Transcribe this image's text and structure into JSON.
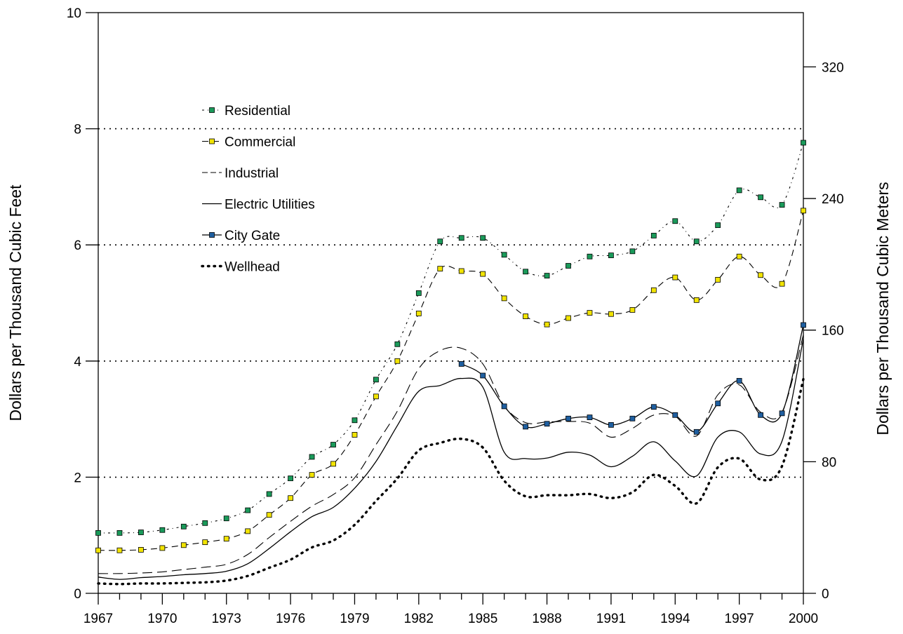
{
  "chart_data": {
    "type": "line",
    "ylabel": "Dollars per Thousand Cubic Feet",
    "y2label": "Dollars per Thousand Cubic Meters",
    "ylim": [
      0,
      10
    ],
    "y2lim": [
      0,
      353
    ],
    "xlim": [
      1967,
      2000
    ],
    "xticks": [
      "1967",
      "1970",
      "1973",
      "1976",
      "1979",
      "1982",
      "1985",
      "1988",
      "1991",
      "1994",
      "1997",
      "2000"
    ],
    "yticks": [
      "0",
      "2",
      "4",
      "6",
      "8",
      "10"
    ],
    "y2ticks": [
      "0",
      "80",
      "160",
      "240",
      "320"
    ],
    "grid": "horizontal dotted at 2, 4, 6, 8",
    "legend_position": "top-left",
    "x": [
      1967,
      1968,
      1969,
      1970,
      1971,
      1972,
      1973,
      1974,
      1975,
      1976,
      1977,
      1978,
      1979,
      1980,
      1981,
      1982,
      1983,
      1984,
      1985,
      1986,
      1987,
      1988,
      1989,
      1990,
      1991,
      1992,
      1993,
      1994,
      1995,
      1996,
      1997,
      1998,
      1999,
      2000
    ],
    "series": [
      {
        "name": "Residential",
        "style": "dashdot-markers",
        "color": "#1a9a5a",
        "values": [
          1.04,
          1.04,
          1.05,
          1.09,
          1.15,
          1.21,
          1.29,
          1.43,
          1.71,
          1.98,
          2.35,
          2.56,
          2.98,
          3.68,
          4.29,
          5.17,
          6.06,
          6.12,
          6.12,
          5.83,
          5.54,
          5.47,
          5.64,
          5.8,
          5.82,
          5.89,
          6.16,
          6.41,
          6.06,
          6.34,
          6.94,
          6.82,
          6.69,
          7.76
        ]
      },
      {
        "name": "Commercial",
        "style": "dashed-markers",
        "color": "#f2e400",
        "values": [
          0.74,
          0.74,
          0.75,
          0.78,
          0.83,
          0.88,
          0.94,
          1.07,
          1.35,
          1.64,
          2.04,
          2.23,
          2.73,
          3.39,
          4.0,
          4.82,
          5.59,
          5.55,
          5.5,
          5.08,
          4.77,
          4.63,
          4.74,
          4.83,
          4.81,
          4.88,
          5.22,
          5.44,
          5.05,
          5.4,
          5.8,
          5.48,
          5.33,
          6.59
        ]
      },
      {
        "name": "Industrial",
        "style": "long-dash",
        "color": "#000000",
        "values": [
          0.34,
          0.34,
          0.35,
          0.37,
          0.41,
          0.45,
          0.5,
          0.67,
          0.96,
          1.24,
          1.5,
          1.7,
          1.99,
          2.56,
          3.14,
          3.87,
          4.18,
          4.22,
          3.95,
          3.23,
          2.94,
          2.95,
          2.96,
          2.93,
          2.69,
          2.84,
          3.07,
          3.05,
          2.71,
          3.42,
          3.59,
          3.12,
          3.12,
          4.45
        ]
      },
      {
        "name": "Electric Utilities",
        "style": "solid",
        "color": "#000000",
        "values": [
          0.28,
          0.24,
          0.27,
          0.29,
          0.32,
          0.34,
          0.38,
          0.51,
          0.77,
          1.06,
          1.32,
          1.48,
          1.81,
          2.27,
          2.89,
          3.48,
          3.58,
          3.7,
          3.55,
          2.43,
          2.32,
          2.33,
          2.43,
          2.38,
          2.18,
          2.36,
          2.61,
          2.28,
          2.02,
          2.69,
          2.78,
          2.4,
          2.62,
          4.38
        ]
      },
      {
        "name": "City Gate",
        "style": "solid-markers",
        "color": "#1f5fa0",
        "values": [
          null,
          null,
          null,
          null,
          null,
          null,
          null,
          null,
          null,
          null,
          null,
          null,
          null,
          null,
          null,
          null,
          null,
          3.95,
          3.75,
          3.22,
          2.87,
          2.92,
          3.01,
          3.03,
          2.9,
          3.01,
          3.21,
          3.07,
          2.78,
          3.27,
          3.66,
          3.07,
          3.1,
          4.62
        ]
      },
      {
        "name": "Wellhead",
        "style": "dotted",
        "color": "#000000",
        "values": [
          0.17,
          0.16,
          0.17,
          0.17,
          0.18,
          0.19,
          0.22,
          0.3,
          0.44,
          0.58,
          0.79,
          0.91,
          1.18,
          1.59,
          1.98,
          2.46,
          2.59,
          2.66,
          2.51,
          1.94,
          1.67,
          1.69,
          1.69,
          1.71,
          1.64,
          1.74,
          2.04,
          1.85,
          1.55,
          2.17,
          2.32,
          1.96,
          2.19,
          3.69
        ]
      }
    ]
  }
}
